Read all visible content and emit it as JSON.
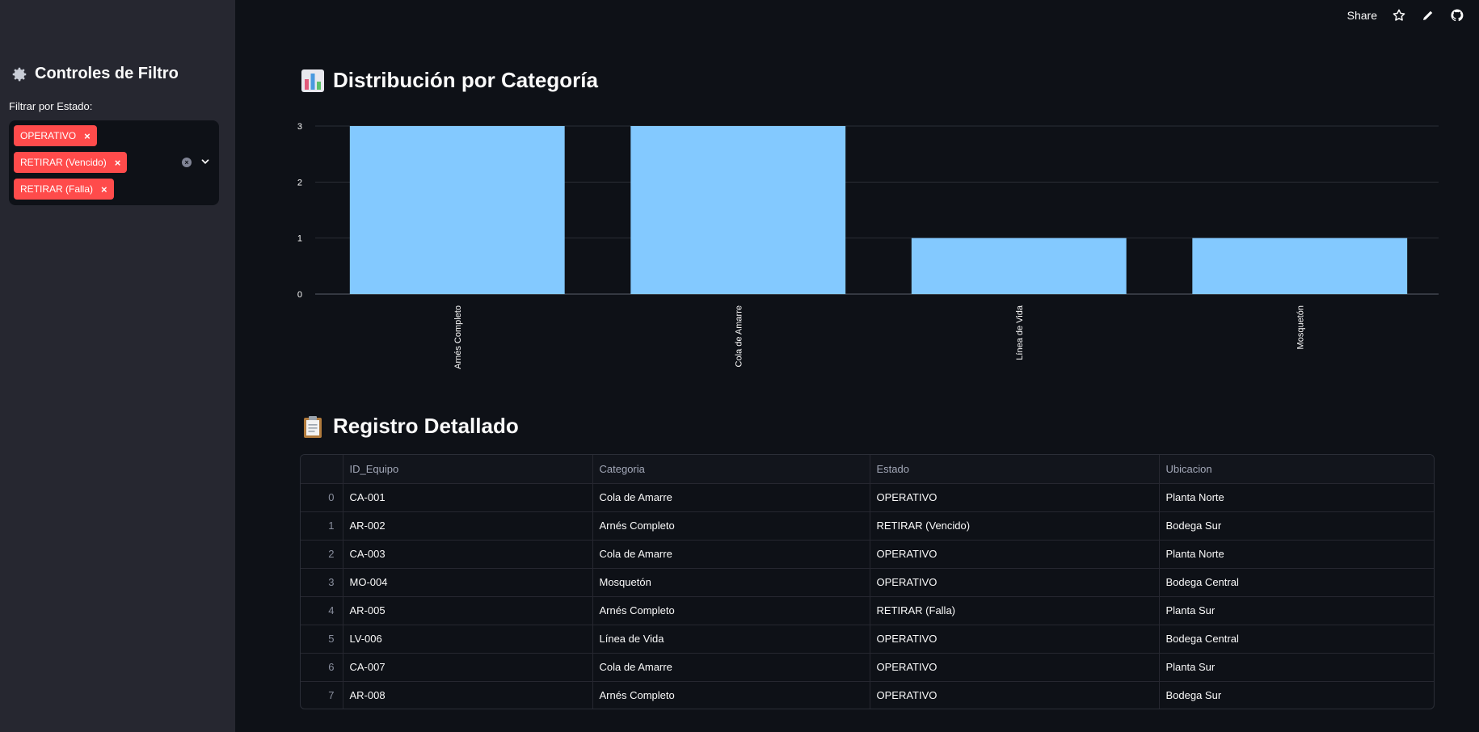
{
  "sidebar": {
    "title": "Controles de Filtro",
    "filter_label": "Filtrar por Estado:",
    "selected_tags": [
      "OPERATIVO",
      "RETIRAR (Vencido)",
      "RETIRAR (Falla)"
    ],
    "remove_symbol": "×"
  },
  "toolbar": {
    "share_label": "Share"
  },
  "sections": {
    "chart_heading": "Distribución por Categoría",
    "table_heading": "Registro Detallado"
  },
  "chart_data": {
    "type": "bar",
    "categories": [
      "Arnés Completo",
      "Cola de Amarre",
      "Línea de Vida",
      "Mosquetón"
    ],
    "values": [
      3,
      3,
      1,
      1
    ],
    "yticks": [
      0,
      1,
      2,
      3
    ],
    "ylim": [
      0,
      3
    ],
    "color": "#83c9ff",
    "grid": true,
    "title": "",
    "xlabel": "",
    "ylabel": ""
  },
  "table": {
    "columns": [
      "ID_Equipo",
      "Categoria",
      "Estado",
      "Ubicacion"
    ],
    "rows": [
      [
        "0",
        "CA-001",
        "Cola de Amarre",
        "OPERATIVO",
        "Planta Norte"
      ],
      [
        "1",
        "AR-002",
        "Arnés Completo",
        "RETIRAR (Vencido)",
        "Bodega Sur"
      ],
      [
        "2",
        "CA-003",
        "Cola de Amarre",
        "OPERATIVO",
        "Planta Norte"
      ],
      [
        "3",
        "MO-004",
        "Mosquetón",
        "OPERATIVO",
        "Bodega Central"
      ],
      [
        "4",
        "AR-005",
        "Arnés Completo",
        "RETIRAR (Falla)",
        "Planta Sur"
      ],
      [
        "5",
        "LV-006",
        "Línea de Vida",
        "OPERATIVO",
        "Bodega Central"
      ],
      [
        "6",
        "CA-007",
        "Cola de Amarre",
        "OPERATIVO",
        "Planta Sur"
      ],
      [
        "7",
        "AR-008",
        "Arnés Completo",
        "OPERATIVO",
        "Bodega Sur"
      ]
    ]
  },
  "colors": {
    "accent": "#ff4b4b",
    "bar": "#83c9ff",
    "background": "#0e1117",
    "sidebar": "#262730"
  }
}
